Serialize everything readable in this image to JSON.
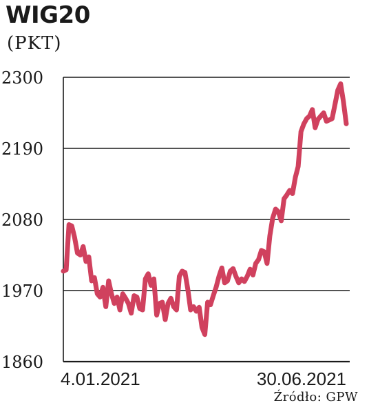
{
  "chart_data": {
    "type": "line",
    "title": "WIG20",
    "subtitle": "(PKT)",
    "source": "Źródło: GPW",
    "ylim": [
      1860,
      2300
    ],
    "yticks": [
      "2300",
      "2190",
      "2080",
      "1970",
      "1860"
    ],
    "xtick_labels": [
      "4.01.2021",
      "30.06.2021"
    ],
    "grid": true,
    "colors": {
      "line": "#d0415e",
      "grid": "#1a1a1a"
    },
    "series": [
      {
        "values": [
          2000,
          2002,
          2072,
          2070,
          2052,
          2028,
          2025,
          2038,
          2015,
          2022,
          1985,
          1990,
          1965,
          1960,
          1975,
          1945,
          1985,
          1965,
          1950,
          1960,
          1940,
          1965,
          1958,
          1950,
          1935,
          1962,
          1960,
          1942,
          1940,
          1988,
          1996,
          1978,
          1988,
          1932,
          1950,
          1952,
          1925,
          1950,
          1958,
          1945,
          1940,
          1992,
          2000,
          1998,
          1972,
          1940,
          1945,
          1938,
          1944,
          1913,
          1902,
          1952,
          1948,
          1962,
          1975,
          1992,
          2005,
          1982,
          1985,
          2000,
          2004,
          1992,
          1982,
          1988,
          1984,
          1992,
          2003,
          1994,
          2012,
          2018,
          2032,
          2030,
          2012,
          2055,
          2082,
          2096,
          2092,
          2078,
          2112,
          2118,
          2125,
          2120,
          2145,
          2162,
          2216,
          2228,
          2236,
          2240,
          2250,
          2222,
          2235,
          2240,
          2245,
          2232,
          2234,
          2236,
          2258,
          2280,
          2290,
          2262,
          2228
        ]
      }
    ]
  }
}
